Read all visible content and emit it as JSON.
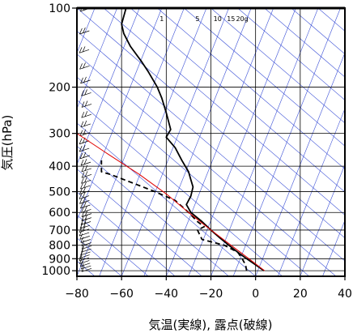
{
  "chart_data": {
    "type": "line",
    "ylabel": "気圧(hPa)",
    "xlabel": "気温(実線), 露点(破線)",
    "x_ticks": [
      -80,
      -60,
      -40,
      -20,
      0,
      20,
      40
    ],
    "x_tick_labels": [
      "−80",
      "−60",
      "−40",
      "−20",
      "0",
      "20",
      "40"
    ],
    "y_ticks": [
      100,
      200,
      300,
      400,
      500,
      600,
      700,
      800,
      900,
      1000
    ],
    "y_tick_labels": [
      "100",
      "200",
      "300",
      "400",
      "500",
      "600",
      "700",
      "800",
      "900",
      "1000"
    ],
    "xlim": [
      -80,
      40
    ],
    "ylim": [
      1050,
      100
    ],
    "y_scale": "log",
    "grid": true,
    "mixing_ratio_labels": [
      "1",
      "5",
      "10",
      "15",
      "20g"
    ],
    "mixing_ratio_label_x": [
      -42,
      -26,
      -17,
      -11,
      -6
    ],
    "colors": {
      "temperature": "#000000",
      "dewpoint": "#000000",
      "parcel": "#e00000",
      "guide": "#3a4fd6",
      "grid": "#000000"
    },
    "series": [
      {
        "role": "temperature",
        "style": "solid",
        "points": [
          [
            3.8,
            1000
          ],
          [
            0,
            950
          ],
          [
            -4,
            900
          ],
          [
            -8,
            850
          ],
          [
            -12,
            800
          ],
          [
            -16,
            750
          ],
          [
            -20,
            700
          ],
          [
            -24,
            650
          ],
          [
            -29,
            600
          ],
          [
            -31,
            560
          ],
          [
            -29,
            520
          ],
          [
            -28,
            480
          ],
          [
            -29,
            450
          ],
          [
            -30,
            420
          ],
          [
            -33,
            380
          ],
          [
            -36,
            340
          ],
          [
            -40,
            310
          ],
          [
            -38,
            290
          ],
          [
            -40,
            250
          ],
          [
            -42,
            220
          ],
          [
            -44,
            200
          ],
          [
            -48,
            175
          ],
          [
            -51,
            160
          ],
          [
            -56,
            140
          ],
          [
            -59,
            125
          ],
          [
            -60,
            115
          ],
          [
            -58,
            100
          ]
        ]
      },
      {
        "role": "dewpoint",
        "style": "dashed",
        "points": [
          [
            -4,
            1000
          ],
          [
            -4.5,
            950
          ],
          [
            -6,
            900
          ],
          [
            -8,
            850
          ],
          [
            -14,
            800
          ],
          [
            -24,
            760
          ],
          [
            -25,
            730
          ],
          [
            -26,
            700
          ],
          [
            -23,
            680
          ],
          [
            -26,
            650
          ],
          [
            -30,
            600
          ],
          [
            -36,
            540
          ],
          [
            -45,
            500
          ],
          [
            -56,
            460
          ],
          [
            -65,
            430
          ],
          [
            -69,
            420
          ],
          [
            -69,
            380
          ]
        ]
      },
      {
        "role": "parcel",
        "style": "solid",
        "points": [
          [
            4,
            1000
          ],
          [
            -3,
            900
          ],
          [
            -11,
            800
          ],
          [
            -20,
            700
          ],
          [
            -30,
            600
          ],
          [
            -40,
            510
          ],
          [
            -52,
            430
          ],
          [
            -66,
            360
          ],
          [
            -80,
            300
          ],
          [
            -86,
            270
          ]
        ]
      }
    ]
  }
}
